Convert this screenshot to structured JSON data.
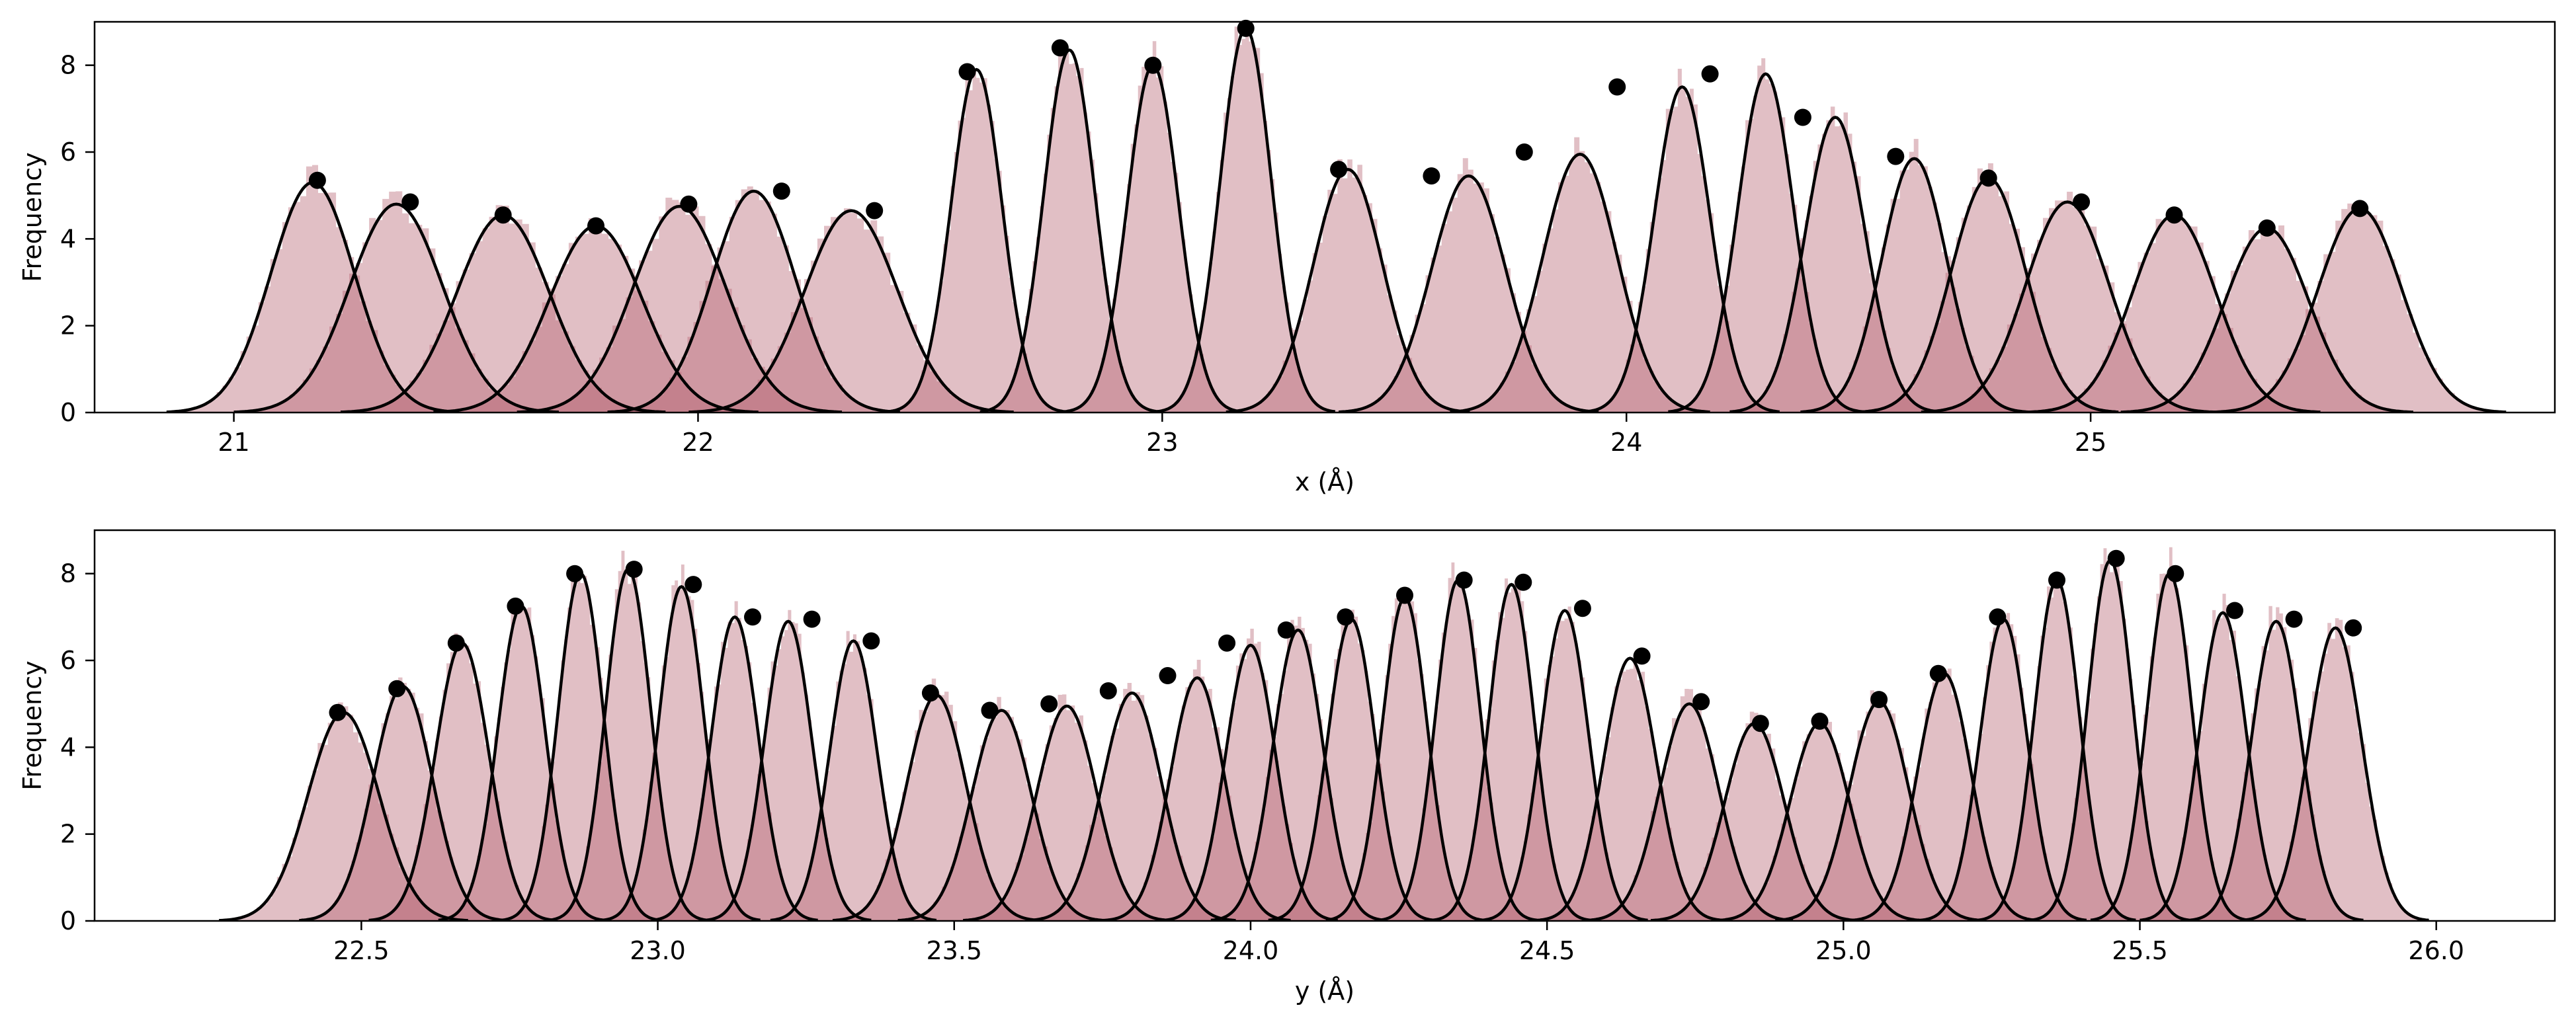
{
  "chart_data": [
    {
      "type": "histogram",
      "xlabel": "x (Å)",
      "ylabel": "Frequency",
      "xlim": [
        20.7,
        26.0
      ],
      "ylim": [
        0,
        9.0
      ],
      "xticks": [
        21,
        22,
        23,
        24,
        25
      ],
      "yticks": [
        0,
        2,
        4,
        6,
        8
      ],
      "colors": {
        "histogram": "#b5606e",
        "fit_curve": "#000000",
        "marker": "#000000"
      },
      "gaussian_fits": [
        {
          "mean": 21.17,
          "sigma": 0.09,
          "amplitude": 5.3
        },
        {
          "mean": 21.35,
          "sigma": 0.1,
          "amplitude": 4.8
        },
        {
          "mean": 21.58,
          "sigma": 0.1,
          "amplitude": 4.55
        },
        {
          "mean": 21.78,
          "sigma": 0.1,
          "amplitude": 4.3
        },
        {
          "mean": 21.96,
          "sigma": 0.1,
          "amplitude": 4.75
        },
        {
          "mean": 22.12,
          "sigma": 0.09,
          "amplitude": 5.1
        },
        {
          "mean": 22.33,
          "sigma": 0.1,
          "amplitude": 4.65
        },
        {
          "mean": 22.6,
          "sigma": 0.055,
          "amplitude": 7.9
        },
        {
          "mean": 22.8,
          "sigma": 0.055,
          "amplitude": 8.35
        },
        {
          "mean": 22.98,
          "sigma": 0.055,
          "amplitude": 8.0
        },
        {
          "mean": 23.18,
          "sigma": 0.055,
          "amplitude": 8.85
        },
        {
          "mean": 23.4,
          "sigma": 0.075,
          "amplitude": 5.6
        },
        {
          "mean": 23.66,
          "sigma": 0.08,
          "amplitude": 5.45
        },
        {
          "mean": 23.9,
          "sigma": 0.08,
          "amplitude": 5.95
        },
        {
          "mean": 24.12,
          "sigma": 0.06,
          "amplitude": 7.5
        },
        {
          "mean": 24.3,
          "sigma": 0.06,
          "amplitude": 7.8
        },
        {
          "mean": 24.45,
          "sigma": 0.065,
          "amplitude": 6.8
        },
        {
          "mean": 24.62,
          "sigma": 0.07,
          "amplitude": 5.85
        },
        {
          "mean": 24.78,
          "sigma": 0.08,
          "amplitude": 5.4
        },
        {
          "mean": 24.95,
          "sigma": 0.09,
          "amplitude": 4.85
        },
        {
          "mean": 25.18,
          "sigma": 0.09,
          "amplitude": 4.55
        },
        {
          "mean": 25.38,
          "sigma": 0.09,
          "amplitude": 4.25
        },
        {
          "mean": 25.58,
          "sigma": 0.09,
          "amplitude": 4.7
        }
      ],
      "points": [
        {
          "x": 21.18,
          "y": 5.35
        },
        {
          "x": 21.38,
          "y": 4.85
        },
        {
          "x": 21.58,
          "y": 4.55
        },
        {
          "x": 21.78,
          "y": 4.3
        },
        {
          "x": 21.98,
          "y": 4.8
        },
        {
          "x": 22.18,
          "y": 5.1
        },
        {
          "x": 22.38,
          "y": 4.65
        },
        {
          "x": 22.58,
          "y": 7.85
        },
        {
          "x": 22.78,
          "y": 8.4
        },
        {
          "x": 22.98,
          "y": 8.0
        },
        {
          "x": 23.18,
          "y": 8.85
        },
        {
          "x": 23.38,
          "y": 5.6
        },
        {
          "x": 23.58,
          "y": 5.45
        },
        {
          "x": 23.78,
          "y": 6.0
        },
        {
          "x": 23.98,
          "y": 7.5
        },
        {
          "x": 24.18,
          "y": 7.8
        },
        {
          "x": 24.38,
          "y": 6.8
        },
        {
          "x": 24.58,
          "y": 5.9
        },
        {
          "x": 24.78,
          "y": 5.4
        },
        {
          "x": 24.98,
          "y": 4.85
        },
        {
          "x": 25.18,
          "y": 4.55
        },
        {
          "x": 25.38,
          "y": 4.25
        },
        {
          "x": 25.58,
          "y": 4.7
        }
      ]
    },
    {
      "type": "histogram",
      "xlabel": "y (Å)",
      "ylabel": "Frequency",
      "xlim": [
        22.05,
        26.2
      ],
      "ylim": [
        0,
        9.0
      ],
      "xticks": [
        22.5,
        23.0,
        23.5,
        24.0,
        24.5,
        25.0,
        25.5,
        26.0
      ],
      "xtick_labels": [
        "22.5",
        "23.0",
        "23.5",
        "24.0",
        "24.5",
        "25.0",
        "25.5",
        "26.0"
      ],
      "yticks": [
        0,
        2,
        4,
        6,
        8
      ],
      "colors": {
        "histogram": "#b5606e",
        "fit_curve": "#000000",
        "marker": "#000000"
      },
      "gaussian_fits": [
        {
          "mean": 22.47,
          "sigma": 0.06,
          "amplitude": 4.8
        },
        {
          "mean": 22.57,
          "sigma": 0.05,
          "amplitude": 5.4
        },
        {
          "mean": 22.67,
          "sigma": 0.045,
          "amplitude": 6.4
        },
        {
          "mean": 22.77,
          "sigma": 0.04,
          "amplitude": 7.25
        },
        {
          "mean": 22.87,
          "sigma": 0.038,
          "amplitude": 8.0
        },
        {
          "mean": 22.95,
          "sigma": 0.038,
          "amplitude": 8.1
        },
        {
          "mean": 23.04,
          "sigma": 0.038,
          "amplitude": 7.7
        },
        {
          "mean": 23.13,
          "sigma": 0.04,
          "amplitude": 7.0
        },
        {
          "mean": 23.22,
          "sigma": 0.04,
          "amplitude": 6.9
        },
        {
          "mean": 23.33,
          "sigma": 0.04,
          "amplitude": 6.45
        },
        {
          "mean": 23.47,
          "sigma": 0.05,
          "amplitude": 5.2
        },
        {
          "mean": 23.58,
          "sigma": 0.05,
          "amplitude": 4.85
        },
        {
          "mean": 23.69,
          "sigma": 0.05,
          "amplitude": 4.95
        },
        {
          "mean": 23.8,
          "sigma": 0.05,
          "amplitude": 5.25
        },
        {
          "mean": 23.91,
          "sigma": 0.045,
          "amplitude": 5.6
        },
        {
          "mean": 24.0,
          "sigma": 0.042,
          "amplitude": 6.35
        },
        {
          "mean": 24.08,
          "sigma": 0.042,
          "amplitude": 6.7
        },
        {
          "mean": 24.17,
          "sigma": 0.04,
          "amplitude": 6.95
        },
        {
          "mean": 24.26,
          "sigma": 0.038,
          "amplitude": 7.45
        },
        {
          "mean": 24.35,
          "sigma": 0.038,
          "amplitude": 7.85
        },
        {
          "mean": 24.44,
          "sigma": 0.038,
          "amplitude": 7.75
        },
        {
          "mean": 24.53,
          "sigma": 0.04,
          "amplitude": 7.15
        },
        {
          "mean": 24.64,
          "sigma": 0.045,
          "amplitude": 6.05
        },
        {
          "mean": 24.74,
          "sigma": 0.05,
          "amplitude": 5.0
        },
        {
          "mean": 24.85,
          "sigma": 0.05,
          "amplitude": 4.55
        },
        {
          "mean": 24.96,
          "sigma": 0.05,
          "amplitude": 4.55
        },
        {
          "mean": 25.06,
          "sigma": 0.05,
          "amplitude": 5.05
        },
        {
          "mean": 25.17,
          "sigma": 0.045,
          "amplitude": 5.7
        },
        {
          "mean": 25.27,
          "sigma": 0.04,
          "amplitude": 6.95
        },
        {
          "mean": 25.36,
          "sigma": 0.038,
          "amplitude": 7.85
        },
        {
          "mean": 25.45,
          "sigma": 0.038,
          "amplitude": 8.3
        },
        {
          "mean": 25.55,
          "sigma": 0.038,
          "amplitude": 8.0
        },
        {
          "mean": 25.64,
          "sigma": 0.04,
          "amplitude": 7.1
        },
        {
          "mean": 25.73,
          "sigma": 0.042,
          "amplitude": 6.9
        },
        {
          "mean": 25.83,
          "sigma": 0.045,
          "amplitude": 6.75
        }
      ],
      "points": [
        {
          "x": 22.46,
          "y": 4.8
        },
        {
          "x": 22.56,
          "y": 5.35
        },
        {
          "x": 22.66,
          "y": 6.4
        },
        {
          "x": 22.76,
          "y": 7.25
        },
        {
          "x": 22.86,
          "y": 8.0
        },
        {
          "x": 22.96,
          "y": 8.1
        },
        {
          "x": 23.06,
          "y": 7.75
        },
        {
          "x": 23.16,
          "y": 7.0
        },
        {
          "x": 23.26,
          "y": 6.95
        },
        {
          "x": 23.36,
          "y": 6.45
        },
        {
          "x": 23.46,
          "y": 5.25
        },
        {
          "x": 23.56,
          "y": 4.85
        },
        {
          "x": 23.66,
          "y": 5.0
        },
        {
          "x": 23.76,
          "y": 5.3
        },
        {
          "x": 23.86,
          "y": 5.65
        },
        {
          "x": 23.96,
          "y": 6.4
        },
        {
          "x": 24.06,
          "y": 6.7
        },
        {
          "x": 24.16,
          "y": 7.0
        },
        {
          "x": 24.26,
          "y": 7.5
        },
        {
          "x": 24.36,
          "y": 7.85
        },
        {
          "x": 24.46,
          "y": 7.8
        },
        {
          "x": 24.56,
          "y": 7.2
        },
        {
          "x": 24.66,
          "y": 6.1
        },
        {
          "x": 24.76,
          "y": 5.05
        },
        {
          "x": 24.86,
          "y": 4.55
        },
        {
          "x": 24.96,
          "y": 4.6
        },
        {
          "x": 25.06,
          "y": 5.1
        },
        {
          "x": 25.16,
          "y": 5.7
        },
        {
          "x": 25.26,
          "y": 7.0
        },
        {
          "x": 25.36,
          "y": 7.85
        },
        {
          "x": 25.46,
          "y": 8.35
        },
        {
          "x": 25.56,
          "y": 8.0
        },
        {
          "x": 25.66,
          "y": 7.15
        },
        {
          "x": 25.76,
          "y": 6.95
        },
        {
          "x": 25.86,
          "y": 6.75
        }
      ]
    }
  ]
}
